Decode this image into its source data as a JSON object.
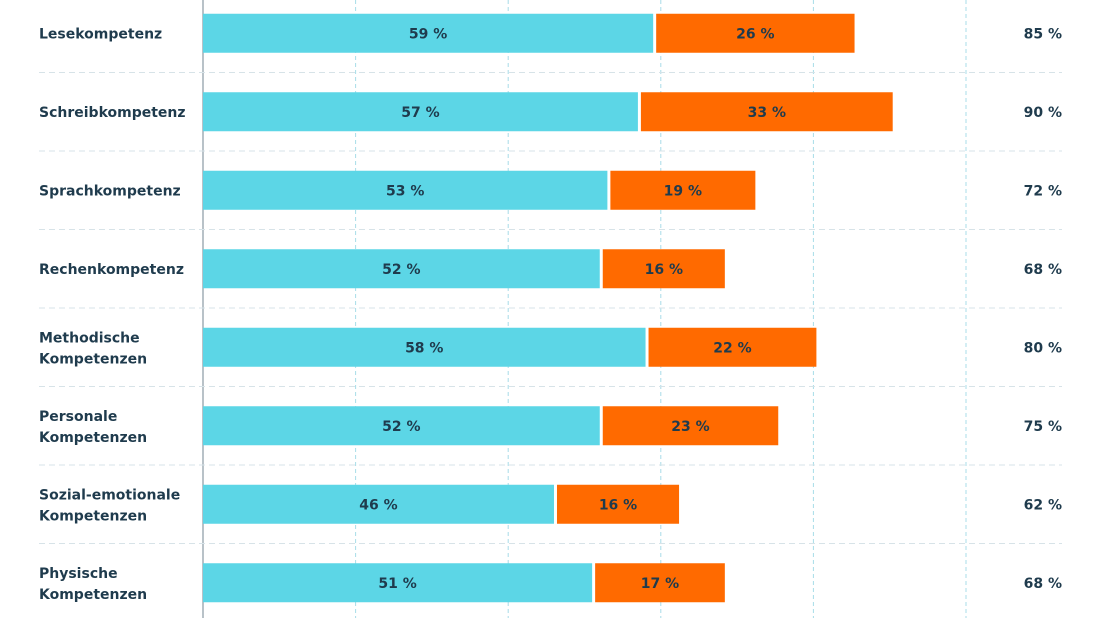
{
  "chart_data": {
    "type": "bar",
    "orientation": "horizontal",
    "stacked": true,
    "categories": [
      "Lesekompetenz",
      "Schreibkompetenz",
      "Sprachkompetenz",
      "Rechenkompetenz",
      "Methodische Kompetenzen",
      "Personale Kompetenzen",
      "Sozial-emotionale Kompetenzen",
      "Physische Kompetenzen"
    ],
    "series": [
      {
        "values": [
          59,
          57,
          53,
          52,
          58,
          52,
          46,
          51
        ],
        "color": "#5cd6e6"
      },
      {
        "values": [
          26,
          33,
          19,
          16,
          22,
          23,
          16,
          17
        ],
        "color": "#ff6a00"
      }
    ],
    "value_labels": [
      [
        "59 %",
        "57 %",
        "53 %",
        "52 %",
        "58 %",
        "52 %",
        "46 %",
        "51 %"
      ],
      [
        "26 %",
        "33 %",
        "19 %",
        "16 %",
        "22 %",
        "23 %",
        "16 %",
        "17 %"
      ]
    ],
    "totals": [
      "85 %",
      "90 %",
      "72 %",
      "68 %",
      "80 %",
      "75 %",
      "62 %",
      "68 %"
    ],
    "xlim": [
      0,
      100
    ],
    "grid": true,
    "grid_color": "#a8dce8",
    "separator_color": "#d7e3e8",
    "text_color": "#1f3b4d"
  }
}
